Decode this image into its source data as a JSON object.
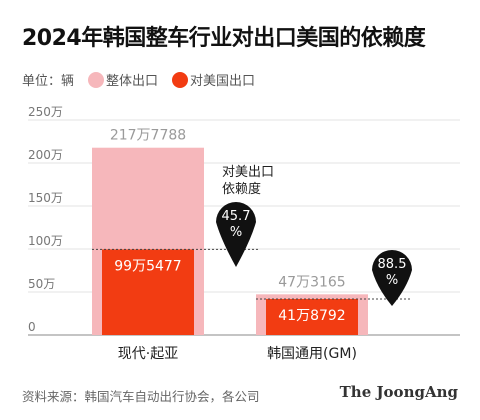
{
  "title": "2024年韩国整车行业对出口美国的依赖度",
  "legend": {
    "unit_label": "单位：辆",
    "items": [
      {
        "label": "整体出口",
        "color": "#f6b7bb"
      },
      {
        "label": "对美国出口",
        "color": "#f23c12"
      }
    ]
  },
  "annotation": {
    "header_lines": [
      "对美出口",
      "依赖度"
    ]
  },
  "chart_data": {
    "type": "bar",
    "ylim": [
      0,
      250
    ],
    "y_ticks": [
      "250万",
      "200万",
      "150万",
      "100万",
      "50万",
      "0"
    ],
    "y_tick_values": [
      250,
      200,
      150,
      100,
      50,
      0
    ],
    "categories": [
      "现代·起亚",
      "韩国通用(GM)"
    ],
    "series": [
      {
        "name": "整体出口",
        "values": [
          217.7788,
          47.3165
        ],
        "labels": [
          "217万7788",
          "47万3165"
        ],
        "color": "#f6b7bb"
      },
      {
        "name": "对美国出口",
        "values": [
          99.5477,
          41.8792
        ],
        "labels": [
          "99万5477",
          "41万8792"
        ],
        "color": "#f23c12"
      }
    ],
    "dependence": [
      {
        "category": "现代·起亚",
        "value_lines": [
          "45.7",
          "%"
        ]
      },
      {
        "category": "韩国通用(GM)",
        "value_lines": [
          "88.5",
          "%"
        ]
      }
    ]
  },
  "footer": {
    "source": "资料来源：韩国汽车自动出行协会，各公司",
    "brand": "The JoongAng"
  }
}
